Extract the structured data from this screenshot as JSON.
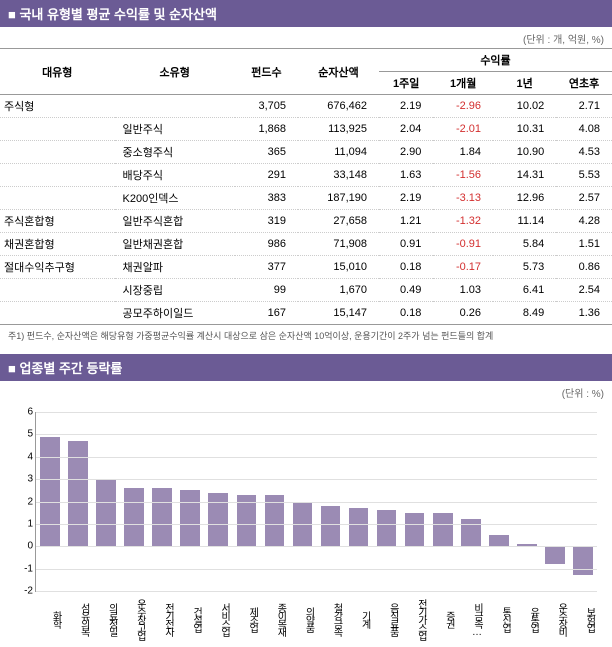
{
  "section1": {
    "title": "국내 유형별 평균 수익률 및 순자산액",
    "unit": "(단위 : 개, 억원, %)",
    "headers": {
      "cat": "대유형",
      "subcat": "소유형",
      "fundCount": "펀드수",
      "netAsset": "순자산액",
      "returns": "수익률",
      "week1": "1주일",
      "month1": "1개월",
      "year1": "1년",
      "ytd": "연초후"
    },
    "rows": [
      {
        "cat": "주식형",
        "sub": "",
        "fc": "3,705",
        "na": "676,462",
        "w": "2.19",
        "m": "-2.96",
        "y": "10.02",
        "ytd": "2.71"
      },
      {
        "cat": "",
        "sub": "일반주식",
        "fc": "1,868",
        "na": "113,925",
        "w": "2.04",
        "m": "-2.01",
        "y": "10.31",
        "ytd": "4.08"
      },
      {
        "cat": "",
        "sub": "중소형주식",
        "fc": "365",
        "na": "11,094",
        "w": "2.90",
        "m": "1.84",
        "y": "10.90",
        "ytd": "4.53"
      },
      {
        "cat": "",
        "sub": "배당주식",
        "fc": "291",
        "na": "33,148",
        "w": "1.63",
        "m": "-1.56",
        "y": "14.31",
        "ytd": "5.53"
      },
      {
        "cat": "",
        "sub": "K200인덱스",
        "fc": "383",
        "na": "187,190",
        "w": "2.19",
        "m": "-3.13",
        "y": "12.96",
        "ytd": "2.57"
      },
      {
        "cat": "주식혼합형",
        "sub": "일반주식혼합",
        "fc": "319",
        "na": "27,658",
        "w": "1.21",
        "m": "-1.32",
        "y": "11.14",
        "ytd": "4.28"
      },
      {
        "cat": "채권혼합형",
        "sub": "일반채권혼합",
        "fc": "986",
        "na": "71,908",
        "w": "0.91",
        "m": "-0.91",
        "y": "5.84",
        "ytd": "1.51"
      },
      {
        "cat": "절대수익추구형",
        "sub": "채권알파",
        "fc": "377",
        "na": "15,010",
        "w": "0.18",
        "m": "-0.17",
        "y": "5.73",
        "ytd": "0.86"
      },
      {
        "cat": "",
        "sub": "시장중립",
        "fc": "99",
        "na": "1,670",
        "w": "0.49",
        "m": "1.03",
        "y": "6.41",
        "ytd": "2.54"
      },
      {
        "cat": "",
        "sub": "공모주하이일드",
        "fc": "167",
        "na": "15,147",
        "w": "0.18",
        "m": "0.26",
        "y": "8.49",
        "ytd": "1.36"
      }
    ],
    "footnote": "주1) 펀드수, 순자산액은 해당유형 가중평균수익률 계산시 대상으로 삼은 순자산액 10억이상, 운용기간이 2주가 넘는 펀드들의 합계"
  },
  "section2": {
    "title": "업종별 주간 등락률",
    "unit": "(단위 : %)",
    "chart": {
      "type": "bar",
      "bar_color": "#9b8bb4",
      "grid_color": "#e0e0e0",
      "axis_color": "#999999",
      "ymin": -2,
      "ymax": 6,
      "ytick_step": 1,
      "yticks": [
        -2,
        -1,
        0,
        1,
        2,
        3,
        4,
        5,
        6
      ],
      "categories": [
        "화학",
        "섬유의복",
        "의료정밀",
        "운수창고업",
        "전기전자",
        "건설업",
        "서비스업",
        "제조업",
        "종이목재",
        "의약품",
        "철강금속",
        "기계",
        "음식료품",
        "전기가스업",
        "증권",
        "비금속…",
        "통신업",
        "유통업",
        "운수장비",
        "보험업"
      ],
      "values": [
        4.9,
        4.7,
        3.0,
        2.6,
        2.6,
        2.5,
        2.4,
        2.3,
        2.3,
        2.0,
        1.8,
        1.7,
        1.6,
        1.5,
        1.5,
        1.2,
        0.5,
        0.1,
        -0.8,
        -1.3
      ]
    }
  }
}
